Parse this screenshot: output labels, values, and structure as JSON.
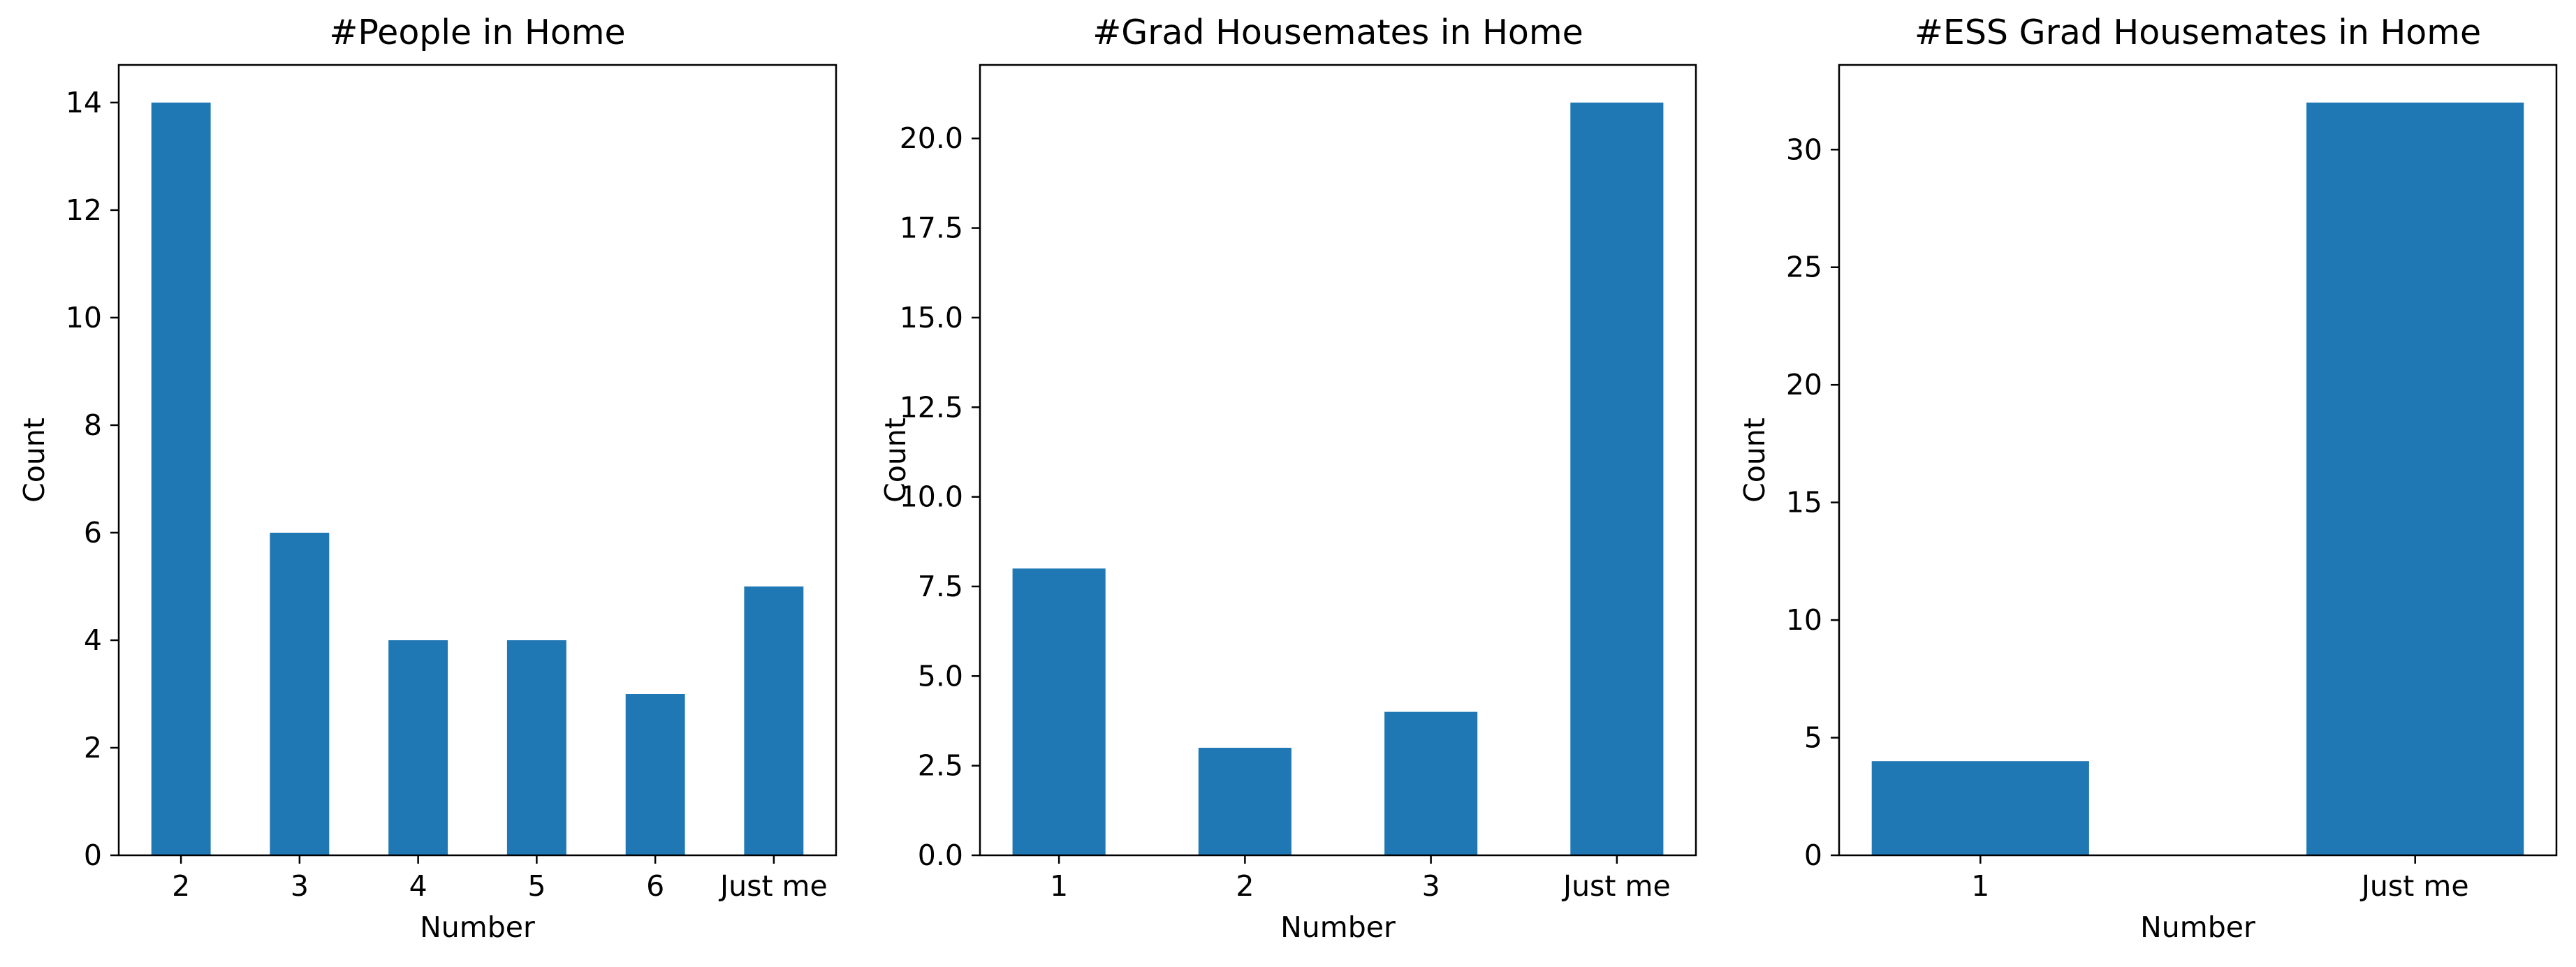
{
  "colors": {
    "bar": "#1f77b4",
    "axis": "#000000",
    "background": "#ffffff"
  },
  "chart_data": [
    {
      "type": "bar",
      "title": "#People in Home",
      "xlabel": "Number",
      "ylabel": "Count",
      "categories": [
        "2",
        "3",
        "4",
        "5",
        "6",
        "Just me"
      ],
      "values": [
        14,
        6,
        4,
        4,
        3,
        5
      ],
      "ylim": [
        0,
        14.7
      ],
      "yticks": [
        "0",
        "2",
        "4",
        "6",
        "8",
        "10",
        "12",
        "14"
      ],
      "grid": false,
      "legend": "none"
    },
    {
      "type": "bar",
      "title": "#Grad Housemates in Home",
      "xlabel": "Number",
      "ylabel": "Count",
      "categories": [
        "1",
        "2",
        "3",
        "Just me"
      ],
      "values": [
        8,
        3,
        4,
        21
      ],
      "ylim": [
        0,
        22.05
      ],
      "yticks": [
        "0.0",
        "2.5",
        "5.0",
        "7.5",
        "10.0",
        "12.5",
        "15.0",
        "17.5",
        "20.0"
      ],
      "grid": false,
      "legend": "none"
    },
    {
      "type": "bar",
      "title": "#ESS Grad Housemates in Home",
      "xlabel": "Number",
      "ylabel": "Count",
      "categories": [
        "1",
        "Just me"
      ],
      "values": [
        4,
        32
      ],
      "ylim": [
        0,
        33.6
      ],
      "yticks": [
        "0",
        "5",
        "10",
        "15",
        "20",
        "25",
        "30"
      ],
      "grid": false,
      "legend": "none"
    }
  ]
}
